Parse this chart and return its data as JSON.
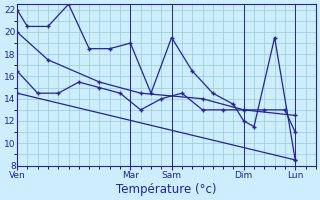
{
  "background_color": "#cceeff",
  "grid_color": "#99cccc",
  "line_color": "#2222aa",
  "xlabel": "Température (°c)",
  "ylim": [
    8,
    22.5
  ],
  "yticks": [
    8,
    10,
    12,
    14,
    16,
    18,
    20,
    22
  ],
  "day_labels": [
    "Ven",
    "Mar",
    "Sam",
    "Dim",
    "Lun"
  ],
  "day_x": [
    0,
    11,
    15,
    22,
    27
  ],
  "xlim": [
    0,
    29
  ],
  "line1_x": [
    0,
    1,
    3,
    5,
    7,
    9,
    11,
    13,
    15,
    17,
    19,
    21,
    22,
    23,
    25,
    27
  ],
  "line1_y": [
    22,
    20.5,
    20.5,
    22.5,
    18.5,
    18.5,
    19,
    14.5,
    19.5,
    16.5,
    14.5,
    13.5,
    12,
    11.5,
    19.5,
    8.5
  ],
  "line2_x": [
    0,
    2,
    4,
    6,
    8,
    10,
    12,
    14,
    16,
    18,
    20,
    22,
    24,
    26,
    27
  ],
  "line2_y": [
    16.5,
    14.5,
    14.5,
    15.5,
    15,
    14.5,
    13,
    14,
    14.5,
    13,
    13,
    13,
    13,
    13,
    11
  ],
  "line3_x": [
    0,
    3,
    8,
    12,
    18,
    22,
    27
  ],
  "line3_y": [
    20,
    17.5,
    15.5,
    14.5,
    14,
    13,
    12.5
  ],
  "line4_x": [
    0,
    27
  ],
  "line4_y": [
    14.5,
    8.5
  ]
}
